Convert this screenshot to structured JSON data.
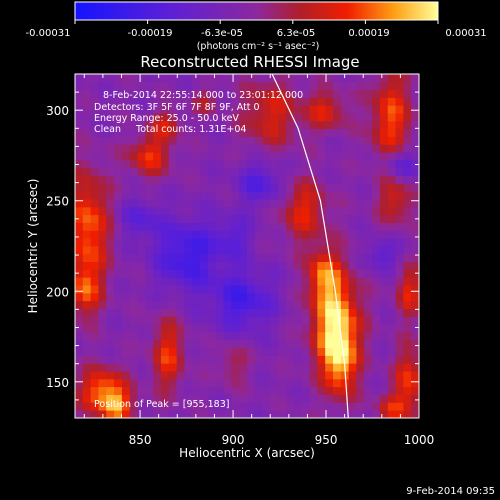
{
  "colorbar": {
    "tick_labels": [
      "-0.00031",
      "-0.00019",
      "-6.3e-05",
      "6.3e-05",
      "0.00019",
      "0.00031"
    ],
    "units_label": "(photons cm⁻² s⁻¹ asec⁻²)"
  },
  "annotations": {
    "time_range": "8-Feb-2014 22:55:14.000 to 23:01:12.000",
    "detectors": "Detectors: 3F 5F 6F 7F 8F 9F, Att 0",
    "energy": "Energy Range: 25.0 - 50.0 keV",
    "clean": "Clean     Total counts: 1.31E+04",
    "peak": "Position of Peak = [955,183]"
  },
  "footer": {
    "timestamp": "9-Feb-2014 09:35"
  },
  "colors": {
    "background": "#000000",
    "limb_line": "#ffffff"
  },
  "chart_data": {
    "type": "heatmap",
    "title": "Reconstructed RHESSI Image",
    "xlabel": "Heliocentric X (arcsec)",
    "ylabel": "Heliocentric Y (arcsec)",
    "xlim": [
      815,
      1000
    ],
    "ylim": [
      130,
      320
    ],
    "x_ticks": [
      850,
      900,
      950,
      1000
    ],
    "y_ticks": [
      150,
      200,
      250,
      300
    ],
    "x_tick_labels": [
      "850",
      "900",
      "950",
      "1000"
    ],
    "y_tick_labels": [
      "150",
      "200",
      "250",
      "300"
    ],
    "colorbar_range": [
      -0.00031,
      0.00031
    ],
    "colormap": "blue-purple-red-yellow",
    "peak": [
      955,
      183
    ],
    "limb_curve": [
      [
        921,
        320
      ],
      [
        935,
        290
      ],
      [
        947,
        250
      ],
      [
        955,
        200
      ],
      [
        960,
        160
      ],
      [
        962,
        130
      ]
    ],
    "blobs": [
      {
        "x": 955,
        "y": 183,
        "sx": 9,
        "sy": 20,
        "v": 1.0
      },
      {
        "x": 948,
        "y": 210,
        "sx": 6,
        "sy": 10,
        "v": 0.55
      },
      {
        "x": 958,
        "y": 160,
        "sx": 6,
        "sy": 14,
        "v": 0.6
      },
      {
        "x": 822,
        "y": 235,
        "sx": 8,
        "sy": 22,
        "v": 0.75
      },
      {
        "x": 820,
        "y": 200,
        "sx": 6,
        "sy": 10,
        "v": 0.55
      },
      {
        "x": 830,
        "y": 145,
        "sx": 9,
        "sy": 9,
        "v": 0.8
      },
      {
        "x": 838,
        "y": 136,
        "sx": 6,
        "sy": 6,
        "v": 0.6
      },
      {
        "x": 865,
        "y": 165,
        "sx": 6,
        "sy": 14,
        "v": 0.6
      },
      {
        "x": 855,
        "y": 275,
        "sx": 8,
        "sy": 8,
        "v": 0.6
      },
      {
        "x": 864,
        "y": 292,
        "sx": 6,
        "sy": 6,
        "v": 0.45
      },
      {
        "x": 920,
        "y": 298,
        "sx": 11,
        "sy": 14,
        "v": 0.5
      },
      {
        "x": 950,
        "y": 300,
        "sx": 8,
        "sy": 8,
        "v": 0.5
      },
      {
        "x": 938,
        "y": 245,
        "sx": 9,
        "sy": 12,
        "v": 0.55
      },
      {
        "x": 985,
        "y": 295,
        "sx": 8,
        "sy": 20,
        "v": 0.65
      },
      {
        "x": 988,
        "y": 250,
        "sx": 7,
        "sy": 9,
        "v": 0.45
      },
      {
        "x": 995,
        "y": 200,
        "sx": 5,
        "sy": 10,
        "v": 0.55
      },
      {
        "x": 995,
        "y": 150,
        "sx": 6,
        "sy": 14,
        "v": 0.6
      },
      {
        "x": 985,
        "y": 135,
        "sx": 6,
        "sy": 6,
        "v": 0.45
      },
      {
        "x": 900,
        "y": 160,
        "sx": 6,
        "sy": 8,
        "v": 0.3
      },
      {
        "x": 885,
        "y": 305,
        "sx": 5,
        "sy": 5,
        "v": 0.3
      },
      {
        "x": 875,
        "y": 220,
        "sx": 12,
        "sy": 14,
        "v": -0.6
      },
      {
        "x": 905,
        "y": 195,
        "sx": 12,
        "sy": 12,
        "v": -0.55
      },
      {
        "x": 915,
        "y": 260,
        "sx": 9,
        "sy": 9,
        "v": -0.45
      },
      {
        "x": 990,
        "y": 270,
        "sx": 7,
        "sy": 7,
        "v": -0.5
      },
      {
        "x": 980,
        "y": 220,
        "sx": 6,
        "sy": 6,
        "v": -0.4
      },
      {
        "x": 900,
        "y": 230,
        "sx": 8,
        "sy": 8,
        "v": -0.35
      },
      {
        "x": 850,
        "y": 240,
        "sx": 8,
        "sy": 8,
        "v": -0.35
      }
    ]
  }
}
